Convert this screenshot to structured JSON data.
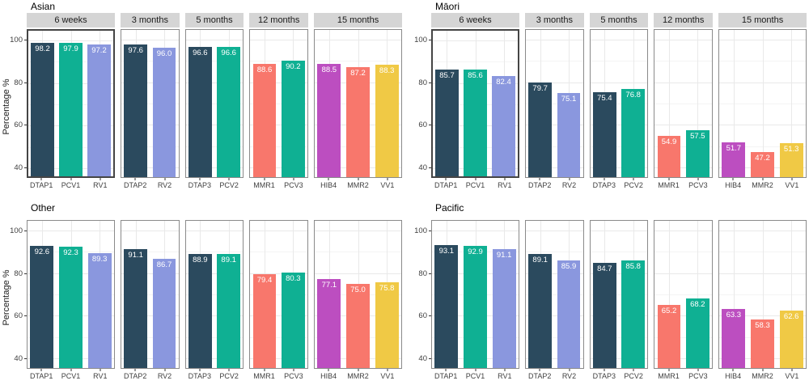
{
  "chart_data": {
    "type": "bar",
    "title": "",
    "ylabel": "Percentage %",
    "ylim": [
      35.5,
      104.5
    ],
    "yticks": [
      40,
      60,
      80,
      100
    ],
    "grid": true,
    "legend": "none",
    "value_label_color": "#ffffff",
    "age_groups": [
      "6 weeks",
      "3 months",
      "5 months",
      "12 months",
      "15 months"
    ],
    "vaccines_by_age": [
      [
        "DTAP1",
        "PCV1",
        "RV1"
      ],
      [
        "DTAP2",
        "RV2"
      ],
      [
        "DTAP3",
        "PCV2"
      ],
      [
        "MMR1",
        "PCV3"
      ],
      [
        "HIB4",
        "MMR2",
        "VV1"
      ]
    ],
    "vaccine_colors": {
      "DTAP": "#2b4a5e",
      "PCV": "#0fb093",
      "RV": "#8a97de",
      "MMR": "#f8776c",
      "HIB": "#bc4ec0",
      "VV": "#f0c945"
    },
    "facets": [
      {
        "name": "Asian",
        "strips_visible": true,
        "highlight_first_panel": true,
        "values": [
          [
            98.2,
            97.9,
            97.2
          ],
          [
            97.6,
            96.0
          ],
          [
            96.6,
            96.6
          ],
          [
            88.6,
            90.2
          ],
          [
            88.5,
            87.2,
            88.3
          ]
        ]
      },
      {
        "name": "Māori",
        "strips_visible": true,
        "highlight_first_panel": true,
        "values": [
          [
            85.7,
            85.6,
            82.4
          ],
          [
            79.7,
            75.1
          ],
          [
            75.4,
            76.8
          ],
          [
            54.9,
            57.5
          ],
          [
            51.7,
            47.2,
            51.3
          ]
        ]
      },
      {
        "name": "Other",
        "strips_visible": false,
        "highlight_first_panel": false,
        "values": [
          [
            92.6,
            92.3,
            89.3
          ],
          [
            91.1,
            86.7
          ],
          [
            88.9,
            89.1
          ],
          [
            79.4,
            80.3
          ],
          [
            77.1,
            75.0,
            75.8
          ]
        ]
      },
      {
        "name": "Pacific",
        "strips_visible": false,
        "highlight_first_panel": false,
        "values": [
          [
            93.1,
            92.9,
            91.1
          ],
          [
            89.1,
            85.9
          ],
          [
            84.7,
            85.8
          ],
          [
            65.2,
            68.2
          ],
          [
            63.3,
            58.3,
            62.6
          ]
        ]
      }
    ]
  }
}
